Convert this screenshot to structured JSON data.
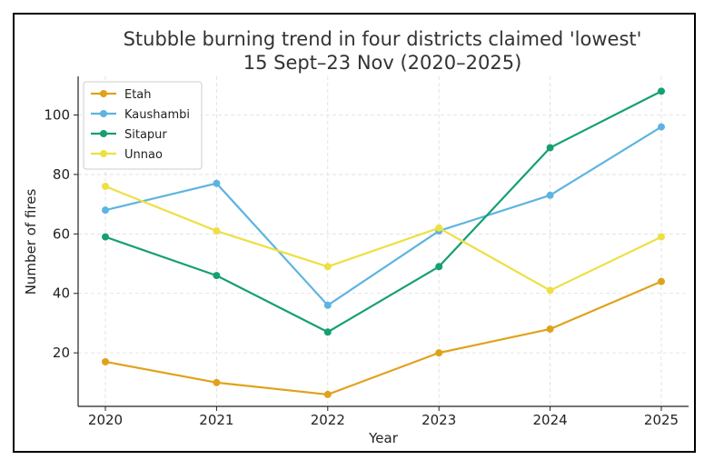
{
  "chart_data": {
    "type": "line",
    "title": "Stubble burning trend in four districts claimed 'lowest'",
    "subtitle": "15 Sept–23 Nov (2020–2025)",
    "xlabel": "Year",
    "ylabel": "Number of fires",
    "x": [
      "2020",
      "2021",
      "2022",
      "2023",
      "2024",
      "2025"
    ],
    "ylim": [
      2,
      113
    ],
    "yticks": [
      20,
      40,
      60,
      80,
      100
    ],
    "grid": true,
    "legend_position": "top-left",
    "series": [
      {
        "name": "Etah",
        "color": "#E0A21A",
        "values": [
          17,
          10,
          6,
          20,
          28,
          44
        ]
      },
      {
        "name": "Kaushambi",
        "color": "#5DB4E0",
        "values": [
          68,
          77,
          36,
          61,
          73,
          96
        ]
      },
      {
        "name": "Sitapur",
        "color": "#16A072",
        "values": [
          59,
          46,
          27,
          49,
          89,
          108
        ]
      },
      {
        "name": "Unnao",
        "color": "#EDE043",
        "values": [
          76,
          61,
          49,
          62,
          41,
          59
        ]
      }
    ]
  }
}
